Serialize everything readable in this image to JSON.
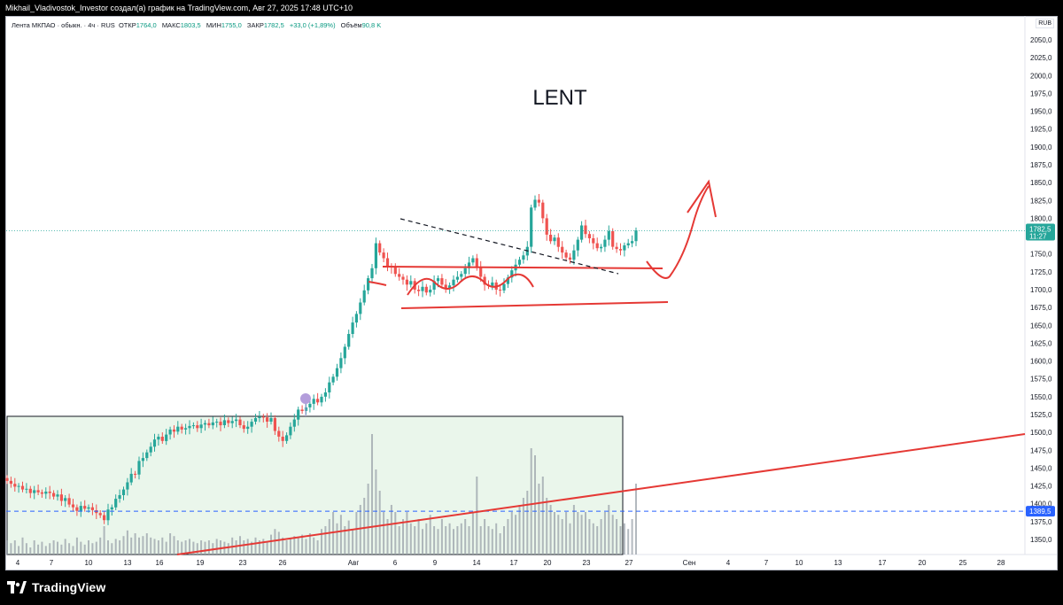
{
  "header": {
    "attribution": "Mikhail_Vladivostok_Investor создал(а) график на TradingView.com, Авг 27, 2025 17:48 UTC+10"
  },
  "legend": {
    "symbol": "Лента МКПАО · обыкн. · 4ч · RUS",
    "open_label": "ОТКР",
    "open": "1764,0",
    "high_label": "МАКС",
    "high": "1803,5",
    "low_label": "МИН",
    "low": "1755,0",
    "close_label": "ЗАКР",
    "close": "1782,5",
    "change": "+33,0 (+1,89%)",
    "volume_label": "Объём",
    "volume": "90,8 K"
  },
  "currency": "RUB",
  "annotation_title": "LENT",
  "price_marker": {
    "price": "1782,5",
    "timer": "11:27",
    "color": "#26a69a"
  },
  "level_marker": {
    "price": "1389,5",
    "color": "#2962ff"
  },
  "footer": {
    "brand": "TradingView"
  },
  "chart_data": {
    "type": "candlestick",
    "interval": "4h",
    "y_axis": {
      "ticks": [
        "2050,0",
        "2025,0",
        "2000,0",
        "1975,0",
        "1950,0",
        "1925,0",
        "1900,0",
        "1875,0",
        "1850,0",
        "1825,0",
        "1800,0",
        "1775,0",
        "1750,0",
        "1725,0",
        "1700,0",
        "1675,0",
        "1650,0",
        "1625,0",
        "1600,0",
        "1575,0",
        "1550,0",
        "1525,0",
        "1500,0",
        "1475,0",
        "1450,0",
        "1425,0",
        "1400,0",
        "1375,0",
        "1350,0"
      ],
      "range": [
        1337,
        2060
      ]
    },
    "x_axis": {
      "ticks": [
        "4",
        "7",
        "10",
        "13",
        "16",
        "19",
        "23",
        "26",
        "Авг",
        "6",
        "9",
        "14",
        "17",
        "20",
        "23",
        "27",
        "Сен",
        "4",
        "7",
        "10",
        "13",
        "17",
        "20",
        "25",
        "28"
      ]
    },
    "closes": [
      1432,
      1428,
      1424,
      1425,
      1420,
      1421,
      1415,
      1419,
      1416,
      1414,
      1417,
      1415,
      1410,
      1413,
      1404,
      1408,
      1399,
      1395,
      1390,
      1397,
      1393,
      1395,
      1391,
      1387,
      1384,
      1377,
      1392,
      1395,
      1407,
      1412,
      1420,
      1430,
      1442,
      1441,
      1460,
      1464,
      1472,
      1480,
      1490,
      1494,
      1488,
      1497,
      1504,
      1501,
      1508,
      1504,
      1506,
      1509,
      1510,
      1506,
      1511,
      1513,
      1510,
      1514,
      1515,
      1510,
      1517,
      1513,
      1516,
      1518,
      1510,
      1505,
      1508,
      1515,
      1520,
      1522,
      1521,
      1515,
      1520,
      1502,
      1494,
      1488,
      1496,
      1508,
      1518,
      1532,
      1530,
      1535,
      1540,
      1547,
      1542,
      1550,
      1556,
      1570,
      1578,
      1590,
      1604,
      1620,
      1638,
      1654,
      1666,
      1682,
      1699,
      1716,
      1730,
      1765,
      1752,
      1744,
      1733,
      1731,
      1722,
      1718,
      1714,
      1707,
      1712,
      1700,
      1698,
      1704,
      1696,
      1700,
      1712,
      1716,
      1707,
      1701,
      1706,
      1714,
      1718,
      1722,
      1730,
      1738,
      1744,
      1732,
      1718,
      1707,
      1705,
      1710,
      1700,
      1699,
      1708,
      1717,
      1727,
      1735,
      1742,
      1748,
      1760,
      1815,
      1826,
      1822,
      1800,
      1777,
      1768,
      1773,
      1760,
      1752,
      1745,
      1742,
      1755,
      1770,
      1790,
      1778,
      1772,
      1765,
      1758,
      1760,
      1770,
      1782,
      1760,
      1757,
      1755,
      1762,
      1765,
      1768,
      1783
    ],
    "volume": {
      "y_range": [
        0,
        1
      ],
      "values": [
        0.1,
        0.08,
        0.1,
        0.06,
        0.12,
        0.08,
        0.05,
        0.1,
        0.07,
        0.09,
        0.06,
        0.08,
        0.1,
        0.09,
        0.07,
        0.11,
        0.08,
        0.06,
        0.12,
        0.09,
        0.07,
        0.1,
        0.08,
        0.09,
        0.12,
        0.2,
        0.1,
        0.08,
        0.11,
        0.1,
        0.13,
        0.17,
        0.12,
        0.15,
        0.12,
        0.13,
        0.15,
        0.12,
        0.11,
        0.1,
        0.12,
        0.09,
        0.15,
        0.13,
        0.1,
        0.09,
        0.1,
        0.11,
        0.09,
        0.08,
        0.1,
        0.09,
        0.1,
        0.08,
        0.11,
        0.1,
        0.09,
        0.08,
        0.12,
        0.1,
        0.13,
        0.1,
        0.11,
        0.09,
        0.12,
        0.1,
        0.11,
        0.09,
        0.14,
        0.18,
        0.16,
        0.12,
        0.1,
        0.11,
        0.13,
        0.12,
        0.14,
        0.11,
        0.15,
        0.12,
        0.1,
        0.18,
        0.2,
        0.25,
        0.3,
        0.22,
        0.28,
        0.2,
        0.24,
        0.18,
        0.3,
        0.35,
        0.4,
        0.5,
        0.85,
        0.6,
        0.45,
        0.3,
        0.25,
        0.35,
        0.3,
        0.2,
        0.25,
        0.3,
        0.22,
        0.2,
        0.25,
        0.18,
        0.22,
        0.28,
        0.2,
        0.18,
        0.25,
        0.2,
        0.22,
        0.18,
        0.2,
        0.22,
        0.25,
        0.2,
        0.3,
        0.55,
        0.2,
        0.25,
        0.2,
        0.18,
        0.22,
        0.15,
        0.2,
        0.25,
        0.3,
        0.28,
        0.35,
        0.4,
        0.45,
        0.75,
        0.7,
        0.5,
        0.55,
        0.4,
        0.35,
        0.3,
        0.28,
        0.25,
        0.3,
        0.22,
        0.35,
        0.3,
        0.28,
        0.3,
        0.25,
        0.22,
        0.2,
        0.25,
        0.3,
        0.35,
        0.28,
        0.25,
        0.2,
        0.22,
        0.18,
        0.25,
        0.5
      ]
    }
  }
}
